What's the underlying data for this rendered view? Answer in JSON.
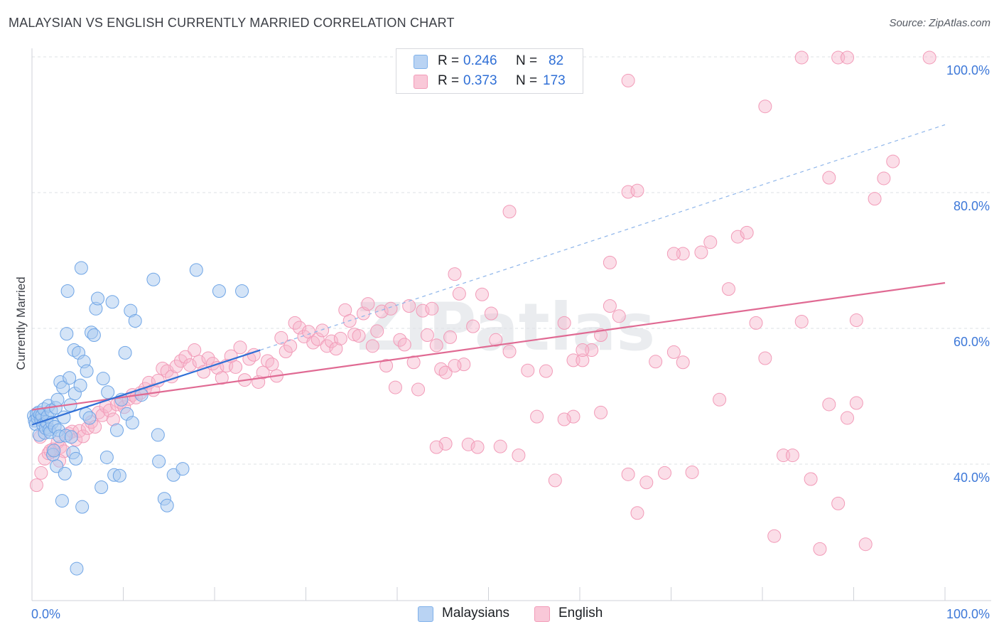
{
  "title": "MALAYSIAN VS ENGLISH CURRENTLY MARRIED CORRELATION CHART",
  "source": "Source: ZipAtlas.com",
  "watermark": "ZIPatlas",
  "legend": {
    "rows": [
      {
        "r_label": "R =",
        "r_value": "0.246",
        "n_label": "N =",
        "n_value": "82"
      },
      {
        "r_label": "R =",
        "r_value": "0.373",
        "n_label": "N =",
        "n_value": "173"
      }
    ]
  },
  "bottom_legend": {
    "malaysians": "Malaysians",
    "english": "English"
  },
  "chart_data": {
    "type": "scatter",
    "title": "MALAYSIAN VS ENGLISH CURRENTLY MARRIED CORRELATION CHART",
    "xlabel": "",
    "ylabel": "Currently Married",
    "xlim": [
      0,
      100
    ],
    "ylim": [
      20,
      102
    ],
    "x_tick_labels": [
      "0.0%",
      "100.0%"
    ],
    "y_ticks": [
      40,
      60,
      80,
      100
    ],
    "y_tick_labels": [
      "40.0%",
      "60.0%",
      "80.0%",
      "100.0%"
    ],
    "grid": true,
    "legend_position": "top-center",
    "colors": {
      "malaysians": "#7fb1ea",
      "english": "#f29bb8",
      "malaysians_line": "#2f6fd6",
      "english_line": "#e06a93",
      "axis_label": "#3d78d8"
    },
    "series": [
      {
        "name": "Malaysians",
        "R": 0.246,
        "N": 82,
        "trend": {
          "x0": 0,
          "y0": 45.8,
          "x1": 25,
          "y1": 56.8,
          "dashed_to": {
            "x": 100,
            "y": 90.0
          }
        },
        "points": [
          [
            0.2,
            47.1
          ],
          [
            0.3,
            46.4
          ],
          [
            0.4,
            45.9
          ],
          [
            0.5,
            47.4
          ],
          [
            0.6,
            46.8
          ],
          [
            0.7,
            47.6
          ],
          [
            0.8,
            44.3
          ],
          [
            0.9,
            47.3
          ],
          [
            1.0,
            46.5
          ],
          [
            1.1,
            47.2
          ],
          [
            1.2,
            45.8
          ],
          [
            1.3,
            48.1
          ],
          [
            1.4,
            44.6
          ],
          [
            1.5,
            45.3
          ],
          [
            1.6,
            46.2
          ],
          [
            1.7,
            47.0
          ],
          [
            1.8,
            48.6
          ],
          [
            1.9,
            45.1
          ],
          [
            2.0,
            44.7
          ],
          [
            2.1,
            47.9
          ],
          [
            2.2,
            46.1
          ],
          [
            2.3,
            41.4
          ],
          [
            2.4,
            42.0
          ],
          [
            2.5,
            45.5
          ],
          [
            2.6,
            48.3
          ],
          [
            2.7,
            39.7
          ],
          [
            2.8,
            49.5
          ],
          [
            2.9,
            45.0
          ],
          [
            3.0,
            44.1
          ],
          [
            3.1,
            52.1
          ],
          [
            3.3,
            34.6
          ],
          [
            3.4,
            51.3
          ],
          [
            3.5,
            46.9
          ],
          [
            3.6,
            38.6
          ],
          [
            3.7,
            44.2
          ],
          [
            3.8,
            59.2
          ],
          [
            3.9,
            65.5
          ],
          [
            4.1,
            52.7
          ],
          [
            4.2,
            48.7
          ],
          [
            4.3,
            44.0
          ],
          [
            4.5,
            41.7
          ],
          [
            4.6,
            56.8
          ],
          [
            4.7,
            50.4
          ],
          [
            4.8,
            40.8
          ],
          [
            4.9,
            24.6
          ],
          [
            5.1,
            56.4
          ],
          [
            5.3,
            51.6
          ],
          [
            5.4,
            68.9
          ],
          [
            5.5,
            33.7
          ],
          [
            5.7,
            55.1
          ],
          [
            5.9,
            47.4
          ],
          [
            6.0,
            53.7
          ],
          [
            6.3,
            46.8
          ],
          [
            6.5,
            59.4
          ],
          [
            7.0,
            62.9
          ],
          [
            7.2,
            64.4
          ],
          [
            7.6,
            36.6
          ],
          [
            7.8,
            52.6
          ],
          [
            8.2,
            41.0
          ],
          [
            8.3,
            50.6
          ],
          [
            8.8,
            63.9
          ],
          [
            9.0,
            38.4
          ],
          [
            9.3,
            45.0
          ],
          [
            9.6,
            38.3
          ],
          [
            10.2,
            56.4
          ],
          [
            10.4,
            47.4
          ],
          [
            10.8,
            62.6
          ],
          [
            11.0,
            46.1
          ],
          [
            11.3,
            61.1
          ],
          [
            13.3,
            67.2
          ],
          [
            13.8,
            44.3
          ],
          [
            13.9,
            40.4
          ],
          [
            14.5,
            34.9
          ],
          [
            14.8,
            33.9
          ],
          [
            15.5,
            38.4
          ],
          [
            16.5,
            39.3
          ],
          [
            18.0,
            68.6
          ],
          [
            20.5,
            65.5
          ],
          [
            23.0,
            65.5
          ],
          [
            6.8,
            59.0
          ],
          [
            9.8,
            49.5
          ],
          [
            12.0,
            50.2
          ]
        ]
      },
      {
        "name": "English",
        "R": 0.373,
        "N": 173,
        "trend": {
          "x0": 0,
          "y0": 48.0,
          "x1": 100,
          "y1": 66.7
        },
        "points": [
          [
            0.5,
            36.9
          ],
          [
            1.0,
            38.7
          ],
          [
            1.4,
            40.8
          ],
          [
            1.8,
            41.6
          ],
          [
            2.3,
            42.2
          ],
          [
            2.8,
            43.2
          ],
          [
            3.1,
            42.5
          ],
          [
            3.5,
            41.9
          ],
          [
            4.0,
            44.5
          ],
          [
            4.4,
            44.8
          ],
          [
            4.8,
            43.6
          ],
          [
            5.2,
            44.9
          ],
          [
            5.6,
            44.1
          ],
          [
            6.1,
            45.3
          ],
          [
            6.5,
            46.2
          ],
          [
            6.9,
            45.5
          ],
          [
            7.3,
            47.6
          ],
          [
            7.7,
            47.2
          ],
          [
            8.1,
            48.5
          ],
          [
            8.5,
            47.9
          ],
          [
            8.9,
            46.6
          ],
          [
            9.3,
            48.8
          ],
          [
            9.7,
            49.1
          ],
          [
            10.1,
            48.4
          ],
          [
            10.6,
            49.6
          ],
          [
            11.0,
            50.2
          ],
          [
            11.4,
            49.8
          ],
          [
            11.9,
            50.5
          ],
          [
            12.4,
            51.1
          ],
          [
            12.8,
            52.0
          ],
          [
            13.3,
            50.9
          ],
          [
            13.8,
            52.3
          ],
          [
            14.3,
            54.1
          ],
          [
            14.8,
            53.7
          ],
          [
            15.3,
            52.9
          ],
          [
            15.8,
            54.4
          ],
          [
            16.3,
            55.2
          ],
          [
            16.8,
            55.8
          ],
          [
            17.3,
            54.6
          ],
          [
            17.8,
            56.8
          ],
          [
            18.3,
            55.1
          ],
          [
            18.8,
            53.6
          ],
          [
            19.3,
            55.6
          ],
          [
            19.8,
            54.8
          ],
          [
            20.3,
            54.2
          ],
          [
            20.8,
            52.7
          ],
          [
            21.3,
            54.5
          ],
          [
            21.8,
            55.9
          ],
          [
            22.3,
            54.3
          ],
          [
            22.8,
            57.2
          ],
          [
            23.3,
            52.4
          ],
          [
            23.8,
            55.5
          ],
          [
            24.3,
            56.1
          ],
          [
            24.8,
            52.1
          ],
          [
            25.3,
            53.5
          ],
          [
            25.8,
            55.2
          ],
          [
            26.3,
            54.7
          ],
          [
            26.8,
            53.0
          ],
          [
            27.3,
            58.6
          ],
          [
            27.8,
            56.6
          ],
          [
            28.3,
            57.4
          ],
          [
            28.8,
            60.8
          ],
          [
            29.3,
            60.1
          ],
          [
            29.8,
            58.8
          ],
          [
            30.3,
            59.5
          ],
          [
            30.8,
            57.9
          ],
          [
            31.3,
            58.4
          ],
          [
            31.8,
            59.7
          ],
          [
            32.3,
            57.4
          ],
          [
            32.8,
            58.1
          ],
          [
            33.3,
            57.0
          ],
          [
            33.8,
            58.5
          ],
          [
            34.3,
            62.7
          ],
          [
            34.8,
            61.1
          ],
          [
            35.3,
            59.1
          ],
          [
            35.8,
            58.9
          ],
          [
            36.3,
            62.2
          ],
          [
            36.8,
            63.6
          ],
          [
            37.3,
            57.4
          ],
          [
            37.8,
            59.6
          ],
          [
            38.3,
            62.5
          ],
          [
            38.8,
            54.5
          ],
          [
            39.3,
            62.9
          ],
          [
            39.8,
            51.3
          ],
          [
            40.3,
            58.3
          ],
          [
            40.8,
            57.6
          ],
          [
            41.3,
            63.3
          ],
          [
            41.8,
            55.0
          ],
          [
            42.3,
            51.0
          ],
          [
            42.8,
            62.6
          ],
          [
            43.3,
            59.0
          ],
          [
            43.8,
            62.9
          ],
          [
            44.3,
            57.5
          ],
          [
            44.8,
            54.0
          ],
          [
            45.3,
            53.5
          ],
          [
            45.8,
            58.7
          ],
          [
            46.3,
            68.0
          ],
          [
            46.8,
            65.1
          ],
          [
            47.3,
            54.7
          ],
          [
            47.8,
            42.9
          ],
          [
            48.3,
            60.3
          ],
          [
            48.8,
            42.5
          ],
          [
            49.3,
            65.0
          ],
          [
            50.3,
            62.2
          ],
          [
            50.8,
            58.3
          ],
          [
            51.3,
            42.6
          ],
          [
            52.3,
            56.6
          ],
          [
            53.3,
            41.3
          ],
          [
            54.3,
            53.8
          ],
          [
            55.3,
            47.0
          ],
          [
            56.3,
            53.7
          ],
          [
            57.3,
            37.6
          ],
          [
            58.3,
            60.8
          ],
          [
            59.3,
            55.3
          ],
          [
            60.3,
            55.3
          ],
          [
            61.3,
            56.8
          ],
          [
            62.3,
            59.0
          ],
          [
            63.3,
            63.3
          ],
          [
            64.3,
            61.8
          ],
          [
            65.3,
            38.5
          ],
          [
            66.3,
            32.8
          ],
          [
            67.3,
            37.3
          ],
          [
            68.3,
            55.1
          ],
          [
            69.3,
            38.7
          ],
          [
            70.3,
            56.5
          ],
          [
            71.3,
            71.0
          ],
          [
            72.3,
            38.8
          ],
          [
            73.3,
            71.2
          ],
          [
            74.3,
            72.7
          ],
          [
            75.3,
            49.5
          ],
          [
            76.3,
            65.8
          ],
          [
            77.3,
            73.5
          ],
          [
            78.3,
            74.1
          ],
          [
            79.3,
            60.8
          ],
          [
            80.3,
            55.6
          ],
          [
            81.3,
            29.4
          ],
          [
            82.3,
            41.3
          ],
          [
            83.3,
            41.3
          ],
          [
            84.3,
            61.0
          ],
          [
            85.3,
            37.8
          ],
          [
            86.3,
            27.5
          ],
          [
            87.3,
            48.8
          ],
          [
            88.3,
            34.2
          ],
          [
            89.3,
            46.8
          ],
          [
            90.3,
            61.2
          ],
          [
            91.3,
            28.2
          ],
          [
            92.3,
            79.1
          ],
          [
            93.3,
            82.1
          ],
          [
            94.3,
            84.6
          ],
          [
            65.3,
            96.5
          ],
          [
            80.3,
            92.7
          ],
          [
            84.3,
            99.9
          ],
          [
            88.3,
            99.9
          ],
          [
            89.3,
            99.9
          ],
          [
            98.3,
            99.9
          ],
          [
            87.3,
            82.2
          ],
          [
            65.3,
            80.1
          ],
          [
            66.3,
            80.3
          ],
          [
            52.3,
            77.2
          ],
          [
            63.3,
            69.7
          ],
          [
            70.3,
            71.0
          ],
          [
            60.3,
            56.8
          ],
          [
            59.3,
            47.0
          ],
          [
            58.3,
            46.6
          ],
          [
            45.3,
            43.0
          ],
          [
            44.3,
            42.5
          ],
          [
            46.3,
            54.5
          ],
          [
            62.3,
            47.6
          ],
          [
            71.3,
            55.0
          ],
          [
            90.3,
            49.0
          ],
          [
            0.9,
            44.0
          ],
          [
            2.0,
            42.0
          ],
          [
            3.0,
            40.5
          ]
        ]
      }
    ]
  }
}
